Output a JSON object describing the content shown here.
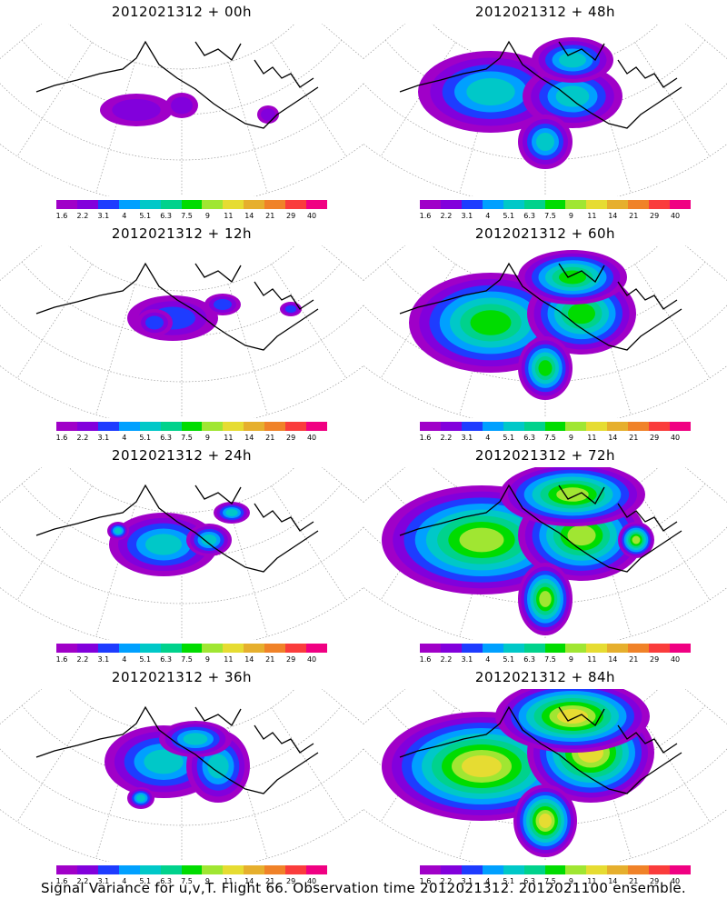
{
  "panels": [
    {
      "title": "2012021312 + 00h",
      "lead_hours": 0
    },
    {
      "title": "2012021312 + 48h",
      "lead_hours": 48
    },
    {
      "title": "2012021312 + 12h",
      "lead_hours": 12
    },
    {
      "title": "2012021312 + 60h",
      "lead_hours": 60
    },
    {
      "title": "2012021312 + 24h",
      "lead_hours": 24
    },
    {
      "title": "2012021312 + 72h",
      "lead_hours": 72
    },
    {
      "title": "2012021312 + 36h",
      "lead_hours": 36
    },
    {
      "title": "2012021312 + 84h",
      "lead_hours": 84
    }
  ],
  "colorbar": {
    "labels": [
      "1.6",
      "2.2",
      "3.1",
      "4",
      "5.1",
      "6.3",
      "7.5",
      "9",
      "11",
      "14",
      "21",
      "29",
      "40"
    ],
    "colors": [
      "#a000c8",
      "#8200dc",
      "#1e3cff",
      "#00a0ff",
      "#00c8c8",
      "#00d28c",
      "#00dc00",
      "#a0e632",
      "#e6dc32",
      "#e6af2d",
      "#f08228",
      "#fa3c3c",
      "#f00082"
    ]
  },
  "caption": "Signal Variance for u,v,T. Flight 66. Observation time 2012021312. 2012021100 ensemble."
}
